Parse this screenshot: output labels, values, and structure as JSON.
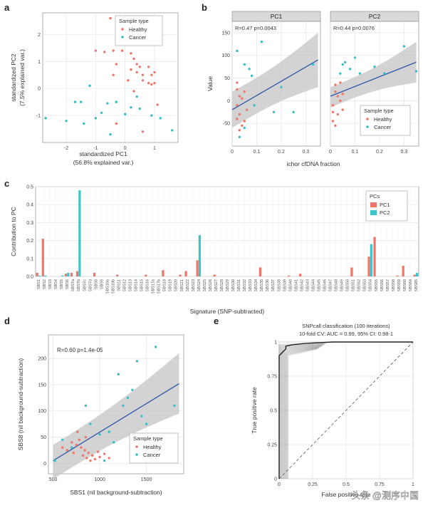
{
  "colors": {
    "healthy": "#f0766a",
    "cancer": "#35bfc6",
    "pc1": "#f0766a",
    "pc2": "#3ec3cc",
    "line": "#2e55a8",
    "band": "#c8c8c8",
    "grid": "#e5e5e5",
    "panel_bg": "#ffffff",
    "strip": "#d9d9d9",
    "roc_curve": "#222222"
  },
  "watermark": "头条 @测序中国",
  "chart_data": [
    {
      "panel": "a",
      "type": "scatter",
      "xlabel_lines": [
        "standardized PC1",
        "(56.8% explained var.)"
      ],
      "ylabel_lines": [
        "standardized PC2",
        "(7.5% explained var.)"
      ],
      "xlim": [
        -2.8,
        1.8
      ],
      "ylim": [
        -2.0,
        2.8
      ],
      "xticks": [
        -2,
        -1,
        0,
        1
      ],
      "yticks": [
        -1,
        0,
        1,
        2
      ],
      "legend": {
        "title": "Sample type",
        "items": [
          "Healthy",
          "Cancer"
        ],
        "placement": "top-right"
      },
      "series": [
        {
          "name": "Healthy",
          "points": [
            [
              -0.5,
              2.6
            ],
            [
              -1.0,
              1.4
            ],
            [
              -0.7,
              1.35
            ],
            [
              -0.4,
              1.4
            ],
            [
              -0.1,
              1.4
            ],
            [
              0.2,
              1.3
            ],
            [
              0.3,
              1.1
            ],
            [
              -0.3,
              0.9
            ],
            [
              0.4,
              0.9
            ],
            [
              0.5,
              0.8
            ],
            [
              0.2,
              0.7
            ],
            [
              0.4,
              0.6
            ],
            [
              0.6,
              0.5
            ],
            [
              0.8,
              0.8
            ],
            [
              0.9,
              0.5
            ],
            [
              0.6,
              0.3
            ],
            [
              0.8,
              0.2
            ],
            [
              0.9,
              0.15
            ],
            [
              1.0,
              0.2
            ],
            [
              1.0,
              0.6
            ],
            [
              -0.4,
              0.5
            ],
            [
              0.1,
              0.3
            ],
            [
              0.3,
              -0.1
            ],
            [
              1.1,
              -0.6
            ],
            [
              -0.3,
              -1.3
            ],
            [
              0.6,
              -1.6
            ]
          ]
        },
        {
          "name": "Cancer",
          "points": [
            [
              -2.7,
              -1.1
            ],
            [
              -2.0,
              -1.2
            ],
            [
              -1.7,
              -0.5
            ],
            [
              -1.4,
              -1.3
            ],
            [
              -1.2,
              0.1
            ],
            [
              -1.0,
              -1.1
            ],
            [
              -0.8,
              -0.9
            ],
            [
              -0.6,
              -0.55
            ],
            [
              -0.5,
              -1.7
            ],
            [
              -0.3,
              -0.5
            ],
            [
              0.0,
              -0.95
            ],
            [
              0.2,
              -0.7
            ],
            [
              0.5,
              -0.75
            ],
            [
              0.9,
              -1.0
            ],
            [
              1.2,
              -1.1
            ],
            [
              1.6,
              -1.55
            ],
            [
              0.4,
              -0.3
            ],
            [
              -1.5,
              -0.5
            ]
          ]
        }
      ]
    },
    {
      "panel": "b",
      "type": "scatter",
      "facets": [
        "PC1",
        "PC2"
      ],
      "xlabel": "ichor cfDNA fraction",
      "ylabel": "Value",
      "xlim": [
        0.0,
        0.36
      ],
      "ylim": [
        -100,
        175
      ],
      "xticks": [
        0.0,
        0.1,
        0.2,
        0.3
      ],
      "yticks": [
        -50,
        0,
        50,
        100,
        150
      ],
      "annotations": [
        {
          "facet": "PC1",
          "text": "R=0.47  p=0.0043"
        },
        {
          "facet": "PC2",
          "text": "R=0.44  p=0.0076"
        }
      ],
      "fit": [
        {
          "facet": "PC1",
          "x": [
            0.0,
            0.35
          ],
          "y": [
            -20,
            90
          ],
          "ci_low": [
            -60,
            30
          ],
          "ci_high": [
            20,
            150
          ]
        },
        {
          "facet": "PC2",
          "x": [
            0.0,
            0.35
          ],
          "y": [
            10,
            85
          ],
          "ci_low": [
            -15,
            40
          ],
          "ci_high": [
            30,
            130
          ]
        }
      ],
      "legend": {
        "title": "Sample type",
        "items": [
          "Healthy",
          "Cancer"
        ],
        "placement": "inside PC2 bottom-right"
      },
      "points": {
        "PC1": {
          "Healthy": [
            [
              0.02,
              -40
            ],
            [
              0.03,
              -30
            ],
            [
              0.02,
              -10
            ],
            [
              0.04,
              -55
            ],
            [
              0.03,
              10
            ],
            [
              0.05,
              20
            ],
            [
              0.02,
              40
            ],
            [
              0.06,
              -20
            ],
            [
              0.03,
              -65
            ],
            [
              0.04,
              5
            ],
            [
              0.05,
              -45
            ],
            [
              0.02,
              25
            ]
          ],
          "Cancer": [
            [
              0.05,
              80
            ],
            [
              0.02,
              110
            ],
            [
              0.07,
              70
            ],
            [
              0.12,
              130
            ],
            [
              0.17,
              -25
            ],
            [
              0.03,
              -80
            ],
            [
              0.09,
              -10
            ],
            [
              0.2,
              30
            ],
            [
              0.25,
              -25
            ],
            [
              0.33,
              80
            ],
            [
              0.08,
              55
            ],
            [
              0.05,
              -60
            ]
          ]
        },
        "PC2": {
          "Healthy": [
            [
              0.01,
              -10
            ],
            [
              0.02,
              20
            ],
            [
              0.03,
              -30
            ],
            [
              0.01,
              -45
            ],
            [
              0.04,
              0
            ],
            [
              0.02,
              35
            ],
            [
              0.05,
              -20
            ],
            [
              0.03,
              10
            ],
            [
              0.04,
              40
            ],
            [
              0.01,
              -25
            ],
            [
              0.02,
              -55
            ],
            [
              0.05,
              15
            ]
          ],
          "Cancer": [
            [
              0.05,
              80
            ],
            [
              0.08,
              70
            ],
            [
              0.1,
              95
            ],
            [
              0.06,
              85
            ],
            [
              0.12,
              60
            ],
            [
              0.18,
              75
            ],
            [
              0.22,
              60
            ],
            [
              0.3,
              120
            ],
            [
              0.35,
              65
            ],
            [
              0.04,
              60
            ]
          ]
        }
      }
    },
    {
      "panel": "c",
      "type": "bar",
      "xlabel": "Signature (SNP-subtracted)",
      "ylabel": "Contribution to PC",
      "ylim": [
        0,
        0.5
      ],
      "yticks": [
        0.0,
        0.1,
        0.2,
        0.3,
        0.4,
        0.5
      ],
      "legend": {
        "title": "PCs",
        "items": [
          "PC1",
          "PC2"
        ],
        "placement": "top-right"
      },
      "categories": [
        "SBS1",
        "SBS2",
        "SBS3",
        "SBS4",
        "SBS5",
        "SBS6",
        "SBS7a",
        "SBS7b",
        "SBS7c",
        "SBS7d",
        "SBS8",
        "SBS9",
        "SBS10a",
        "SBS10b",
        "SBS11",
        "SBS12",
        "SBS13",
        "SBS14",
        "SBS15",
        "SBS16",
        "SBS17a",
        "SBS17b",
        "SBS18",
        "SBS19",
        "SBS20",
        "SBS21",
        "SBS22",
        "SBS23",
        "SBS24",
        "SBS25",
        "SBS26",
        "SBS27",
        "SBS28",
        "SBS29",
        "SBS30",
        "SBS31",
        "SBS32",
        "SBS33",
        "SBS34",
        "SBS35",
        "SBS36",
        "SBS37",
        "SBS38",
        "SBS39",
        "SBS40",
        "SBS41",
        "SBS42",
        "SBS43",
        "SBS44",
        "SBS45",
        "SBS46",
        "SBS47",
        "SBS48",
        "SBS49",
        "SBS50",
        "SBS51",
        "SBS52",
        "SBS53",
        "SBS54",
        "SBS55",
        "SBS56",
        "SBS57",
        "SBS58",
        "SBS59",
        "SBS60",
        "SBS84",
        "SBS85"
      ],
      "series": [
        {
          "name": "PC1",
          "values": [
            0.02,
            0.21,
            0.0,
            0.0,
            0.0,
            0.015,
            0.02,
            0.03,
            0.0,
            0.0,
            0.02,
            0.0,
            0.0,
            0.0,
            0.01,
            0.0,
            0.0,
            0.0,
            0.0,
            0.01,
            0.0,
            0.0,
            0.035,
            0.0,
            0.0,
            0.01,
            0.03,
            0.0,
            0.09,
            0.0,
            0.0,
            0.01,
            0.0,
            0.0,
            0.0,
            0.0,
            0.0,
            0.0,
            0.0,
            0.05,
            0.0,
            0.0,
            0.0,
            0.0,
            0.005,
            0.0,
            0.015,
            0.0,
            0.0,
            0.0,
            0.0,
            0.0,
            0.0,
            0.0,
            0.0,
            0.05,
            0.0,
            0.0,
            0.11,
            0.22,
            0.0,
            0.0,
            0.0,
            0.005,
            0.06,
            0.0,
            0.01
          ]
        },
        {
          "name": "PC2",
          "values": [
            0.005,
            0.005,
            0.0,
            0.0,
            0.005,
            0.02,
            0.0,
            0.48,
            0.0,
            0.0,
            0.0,
            0.0,
            0.0,
            0.0,
            0.0,
            0.0,
            0.0,
            0.0,
            0.0,
            0.0,
            0.0,
            0.0,
            0.0,
            0.0,
            0.0,
            0.0,
            0.0,
            0.0,
            0.23,
            0.0,
            0.0,
            0.0,
            0.0,
            0.0,
            0.0,
            0.0,
            0.0,
            0.0,
            0.0,
            0.0,
            0.0,
            0.0,
            0.0,
            0.0,
            0.0,
            0.0,
            0.0,
            0.0,
            0.0,
            0.0,
            0.0,
            0.0,
            0.0,
            0.0,
            0.0,
            0.0,
            0.0,
            0.0,
            0.18,
            0.0,
            0.0,
            0.0,
            0.0,
            0.0,
            0.0,
            0.0,
            0.02
          ]
        }
      ]
    },
    {
      "panel": "d",
      "type": "scatter",
      "xlabel": "SBS1 (nil background-subtraction)",
      "ylabel": "SBS8 (nil background-subtraction)",
      "xlim": [
        450,
        1900
      ],
      "ylim": [
        -20,
        245
      ],
      "xticks": [
        500,
        1000,
        1500
      ],
      "yticks": [
        0,
        50,
        100,
        150,
        200
      ],
      "annotation": "R=0.60   p=1.4e-05",
      "fit": {
        "x": [
          500,
          1850
        ],
        "y": [
          5,
          152
        ],
        "ci_low": [
          -30,
          95
        ],
        "ci_high": [
          35,
          210
        ]
      },
      "legend": {
        "title": "Sample type",
        "items": [
          "Healthy",
          "Cancer"
        ],
        "placement": "bottom-right"
      },
      "series": [
        {
          "name": "Healthy",
          "points": [
            [
              600,
              30
            ],
            [
              650,
              25
            ],
            [
              700,
              40
            ],
            [
              720,
              20
            ],
            [
              750,
              35
            ],
            [
              780,
              45
            ],
            [
              800,
              30
            ],
            [
              820,
              15
            ],
            [
              840,
              25
            ],
            [
              860,
              10
            ],
            [
              880,
              20
            ],
            [
              900,
              5
            ],
            [
              920,
              15
            ],
            [
              950,
              8
            ],
            [
              980,
              22
            ],
            [
              1000,
              12
            ],
            [
              1050,
              18
            ],
            [
              1100,
              10
            ],
            [
              850,
              50
            ],
            [
              760,
              60
            ]
          ]
        },
        {
          "name": "Cancer",
          "points": [
            [
              520,
              5
            ],
            [
              600,
              45
            ],
            [
              700,
              30
            ],
            [
              850,
              110
            ],
            [
              900,
              75
            ],
            [
              1000,
              55
            ],
            [
              1100,
              60
            ],
            [
              1150,
              40
            ],
            [
              1200,
              170
            ],
            [
              1250,
              110
            ],
            [
              1300,
              125
            ],
            [
              1350,
              140
            ],
            [
              1400,
              195
            ],
            [
              1450,
              90
            ],
            [
              1500,
              75
            ],
            [
              1600,
              222
            ],
            [
              1800,
              110
            ],
            [
              1050,
              5
            ]
          ]
        }
      ]
    },
    {
      "panel": "e",
      "type": "line",
      "title_lines": [
        "SNPcall classification (100 iterations)",
        "10-fold CV: AUC = 0.99, 95% CI: 0.98-1"
      ],
      "xlabel": "False positive rate",
      "ylabel": "True positive rate",
      "xlim": [
        0,
        1
      ],
      "ylim": [
        0,
        1
      ],
      "xticks": [
        0.0,
        0.25,
        0.5,
        0.75,
        1.0
      ],
      "yticks": [
        0.0,
        0.25,
        0.5,
        0.75,
        1.0
      ],
      "roc": {
        "x": [
          0,
          0,
          0.02,
          0.05,
          0.05,
          0.1,
          0.2,
          0.4,
          1.0
        ],
        "y": [
          0,
          0.9,
          0.92,
          0.95,
          0.97,
          0.98,
          0.99,
          1.0,
          1.0
        ]
      },
      "diagonal": {
        "x": [
          0,
          1
        ],
        "y": [
          0,
          1
        ]
      }
    }
  ]
}
